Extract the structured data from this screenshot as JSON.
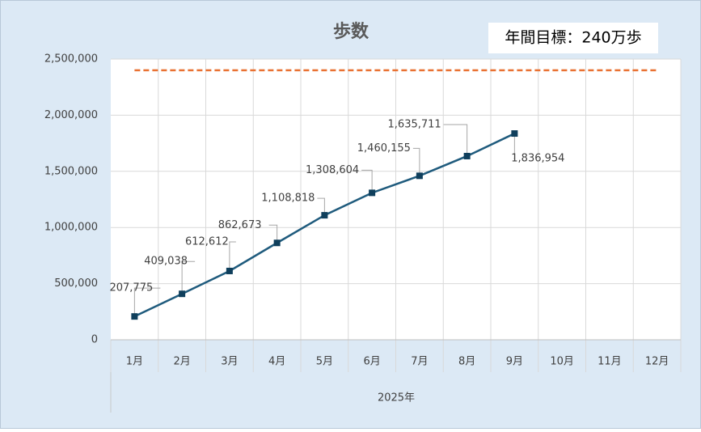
{
  "chart_data": {
    "type": "line",
    "title": "歩数",
    "annotation": "年間目標：240万歩",
    "x_axis_label": "2025年",
    "categories": [
      "1月",
      "2月",
      "3月",
      "4月",
      "5月",
      "6月",
      "7月",
      "8月",
      "9月",
      "10月",
      "11月",
      "12月"
    ],
    "series": [
      {
        "color": "#1f5b7d",
        "values": [
          207775,
          409038,
          612612,
          862673,
          1108818,
          1308604,
          1460155,
          1635711,
          1836954,
          null,
          null,
          null
        ],
        "value_labels": [
          "207,775",
          "409,038",
          "612,612",
          "862,673",
          "1,108,818",
          "1,308,604",
          "1,460,155",
          "1,635,711",
          "1,836,954",
          null,
          null,
          null
        ]
      },
      {
        "color": "#e97132",
        "dashed": true,
        "values": [
          2400000,
          2400000,
          2400000,
          2400000,
          2400000,
          2400000,
          2400000,
          2400000,
          2400000,
          2400000,
          2400000,
          2400000
        ]
      }
    ],
    "ylim": [
      0,
      2500000
    ],
    "yticks": [
      0,
      {
        "value": 500000,
        "label": "500,000"
      },
      {
        "value": 1000000,
        "label": "1,000,000"
      },
      {
        "value": 1500000,
        "label": "1,500,000"
      },
      {
        "value": 2000000,
        "label": "2,000,000"
      },
      {
        "value": 2500000,
        "label": "2,500,000"
      }
    ],
    "grid": true
  }
}
